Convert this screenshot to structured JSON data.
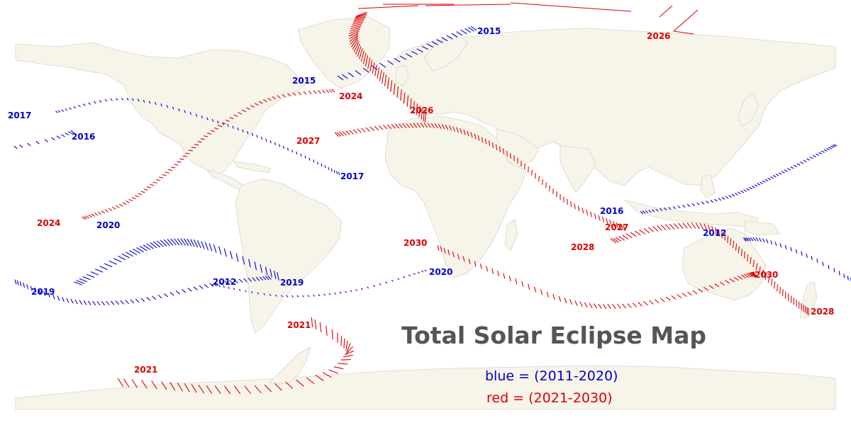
{
  "title": "Total Solar Eclipse Map",
  "legend": {
    "blue": "blue = (2011-2020)",
    "red": "red = (2021-2030)"
  },
  "colors": {
    "blue": "#0000cc",
    "red": "#dd0000",
    "land": "#f7f4ea",
    "border": "#d9d6cf",
    "title": "#555555"
  },
  "eclipse_paths": [
    {
      "year": "2012",
      "color": "blue"
    },
    {
      "year": "2015",
      "color": "blue"
    },
    {
      "year": "2016",
      "color": "blue"
    },
    {
      "year": "2017",
      "color": "blue"
    },
    {
      "year": "2019",
      "color": "blue"
    },
    {
      "year": "2020",
      "color": "blue"
    },
    {
      "year": "2021",
      "color": "red"
    },
    {
      "year": "2024",
      "color": "red"
    },
    {
      "year": "2026",
      "color": "red"
    },
    {
      "year": "2027",
      "color": "red"
    },
    {
      "year": "2028",
      "color": "red"
    },
    {
      "year": "2030",
      "color": "red"
    }
  ]
}
